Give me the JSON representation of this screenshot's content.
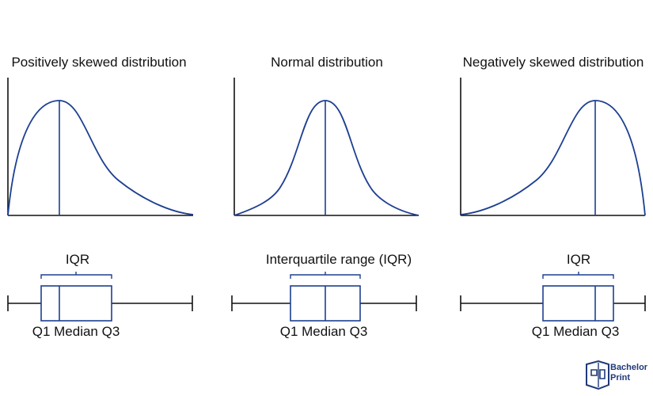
{
  "colors": {
    "curve": "#1d3f91",
    "axis": "#111111",
    "box": "#1d3f91",
    "brand": "#1f3a7a"
  },
  "panels": [
    {
      "title": "Positively skewed distribution",
      "iqr_label": "IQR",
      "quartile_labels": "Q1 Median Q3"
    },
    {
      "title": "Normal distribution",
      "iqr_label": "Interquartile range (IQR)",
      "quartile_labels": "Q1 Median Q3"
    },
    {
      "title": "Negatively skewed distribution",
      "iqr_label": "IQR",
      "quartile_labels": "Q1 Median Q3"
    }
  ],
  "logo": {
    "line1": "Bachelor",
    "line2": "Print",
    "icon": "bachelorprint-logo-icon"
  }
}
